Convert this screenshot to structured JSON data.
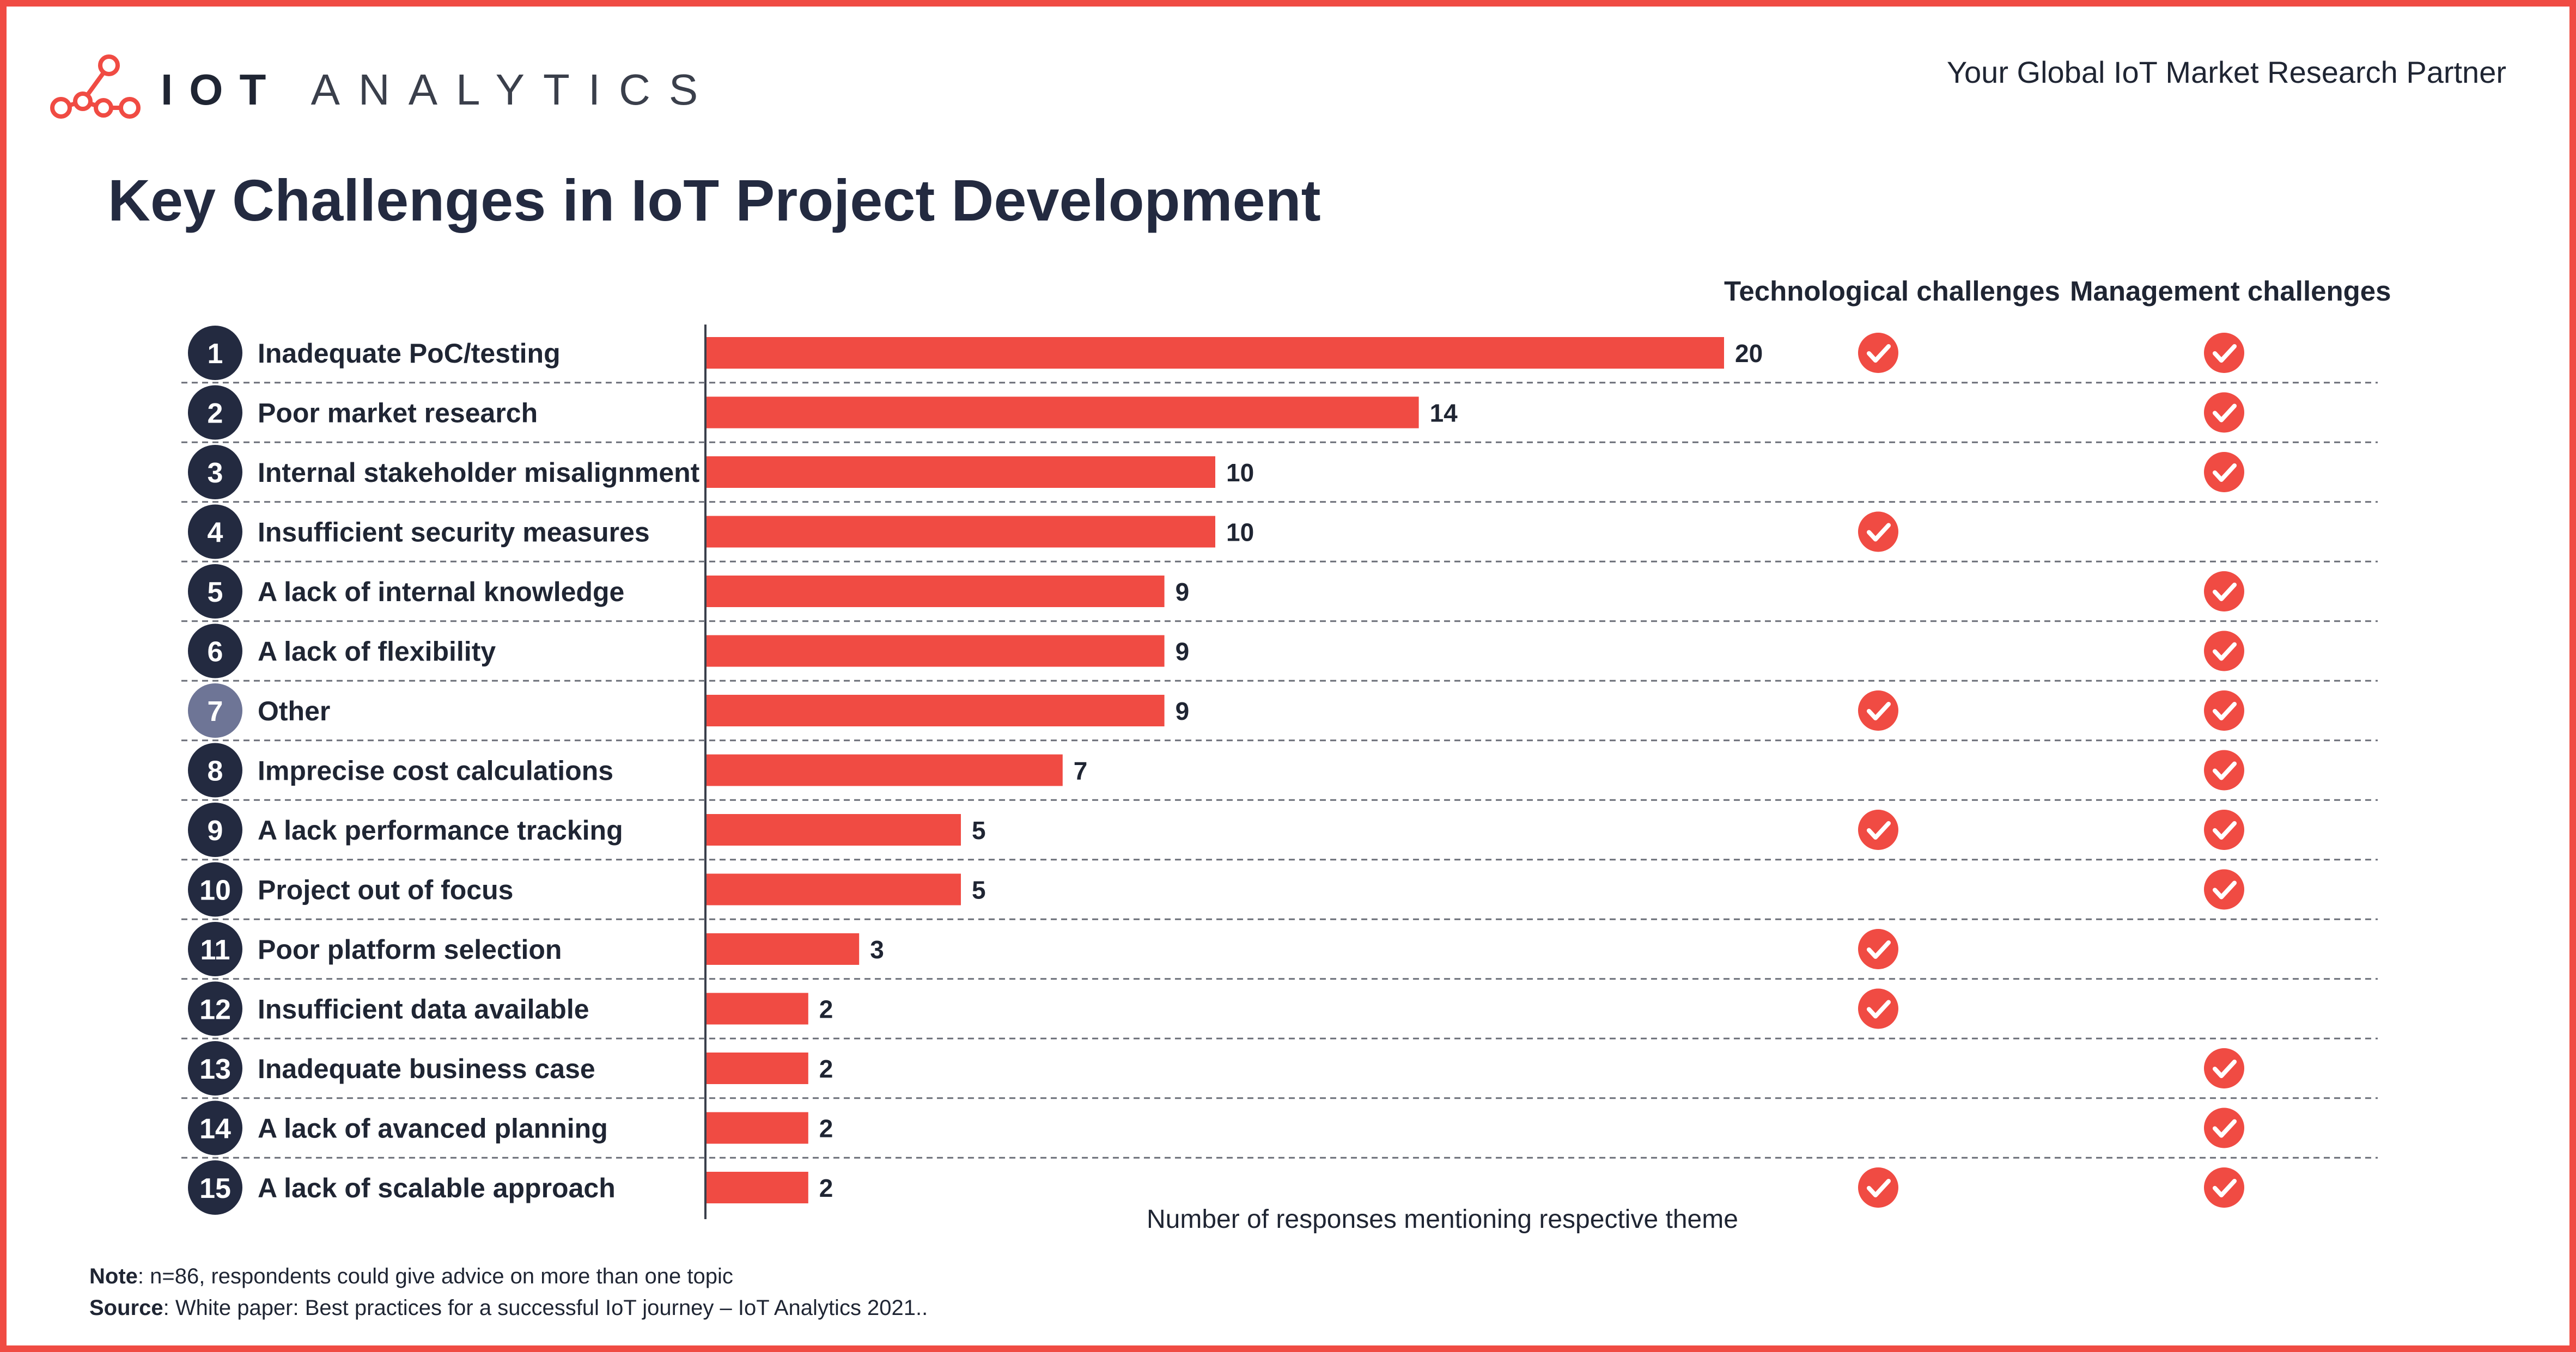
{
  "brand": {
    "logo_word_1": "IOT",
    "logo_word_2": "ANALYTICS",
    "tagline": "Your Global IoT Market Research Partner"
  },
  "colors": {
    "accent": "#f04b43",
    "bar": "#f04b43",
    "badge_dark": "#232a40",
    "badge_highlight": "#6e7596",
    "check": "#f04b43"
  },
  "column_headers": {
    "tech": "Technological challenges",
    "mgmt": "Management challenges"
  },
  "chart_data": {
    "type": "bar",
    "orientation": "horizontal",
    "title": "Key Challenges in IoT Project Development",
    "xlabel": "Number of responses mentioning respective theme",
    "ylabel": "",
    "xlim": [
      0,
      20
    ],
    "grid": false,
    "categories": [
      "Inadequate PoC/testing",
      "Poor market research",
      "Internal stakeholder misalignment",
      "Insufficient security measures",
      "A lack of internal knowledge",
      "A lack of flexibility",
      "Other",
      "Imprecise cost calculations",
      "A lack performance tracking",
      "Project out of focus",
      "Poor platform selection",
      "Insufficient data available",
      "Inadequate business case",
      "A lack of avanced planning",
      "A lack of scalable approach"
    ],
    "ranks": [
      "1",
      "2",
      "3",
      "4",
      "5",
      "6",
      "7",
      "8",
      "9",
      "10",
      "11",
      "12",
      "13",
      "14",
      "15"
    ],
    "highlighted_rank_index": 6,
    "values": [
      20,
      14,
      10,
      10,
      9,
      9,
      9,
      7,
      5,
      5,
      3,
      2,
      2,
      2,
      2
    ],
    "technological": [
      true,
      false,
      false,
      true,
      false,
      false,
      true,
      false,
      true,
      false,
      true,
      true,
      false,
      false,
      true
    ],
    "management": [
      true,
      true,
      true,
      false,
      true,
      true,
      true,
      true,
      true,
      true,
      false,
      false,
      true,
      true,
      true
    ]
  },
  "notes": {
    "note_label": "Note",
    "note_text": ": n=86, respondents could give advice on more than one topic",
    "source_label": "Source",
    "source_text": ": White paper: Best practices for a successful IoT journey – IoT Analytics 2021.."
  }
}
